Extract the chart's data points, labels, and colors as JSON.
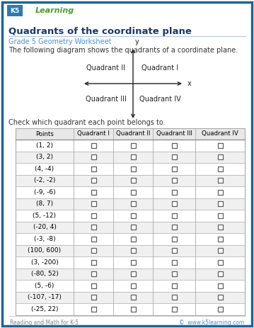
{
  "title": "Quadrants of the coordinate plane",
  "subtitle": "Grade 5 Geometry Worksheet",
  "intro_text": "The following diagram shows the quadrants of a coordinate plane.",
  "check_text": "Check which quadrant each point belongs to.",
  "footer_left": "Reading and Math for K-5",
  "footer_right": "©  www.k5learning.com",
  "quadrant_labels": [
    "Quadrant II",
    "Quadrant I",
    "Quadrant III",
    "Quadrant IV"
  ],
  "axis_x_label": "x",
  "axis_y_label": "y",
  "table_headers": [
    "Points",
    "Quadrant I",
    "Quadrant II",
    "Quadrant III",
    "Quadrant IV"
  ],
  "table_rows": [
    "(1, 2)",
    "(3, 2)",
    "(4, -4)",
    "(-2, -2)",
    "(-9, -6)",
    "(8, 7)",
    "(5, -12)",
    "(-20, 4)",
    "(-3, -8)",
    "(100, 600)",
    "(3, -200)",
    "(-80, 52)",
    "(5, -6)",
    "(-107, -17)",
    "(-25, 22)"
  ],
  "bg_color": "#ffffff",
  "title_color": "#1a3a6e",
  "subtitle_color": "#4a90d9",
  "body_text_color": "#333333",
  "footer_text_color": "#888888",
  "footer_link_color": "#4a90d9",
  "border_color": "#1a6695",
  "table_header_bg": "#e8e8e8",
  "table_row_alt_bg": "#f0f0f0",
  "table_border_color": "#aaaaaa",
  "checkbox_border": "#606060"
}
